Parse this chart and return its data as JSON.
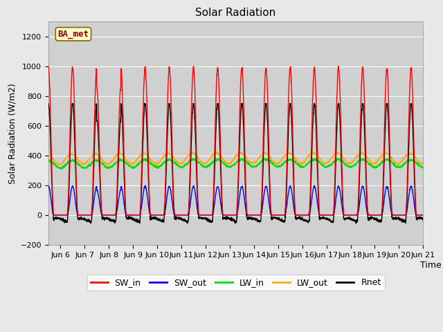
{
  "title": "Solar Radiation",
  "ylabel": "Solar Radiation (W/m2)",
  "xlabel": "Time",
  "ylim": [
    -200,
    1300
  ],
  "yticks": [
    -200,
    0,
    200,
    400,
    600,
    800,
    1000,
    1200
  ],
  "xlim_days": [
    5.5,
    21.0
  ],
  "xtick_positions": [
    6,
    7,
    8,
    9,
    10,
    11,
    12,
    13,
    14,
    15,
    16,
    17,
    18,
    19,
    20,
    21
  ],
  "xtick_labels": [
    "Jun 6",
    "Jun 7",
    "Jun 8",
    "Jun 9",
    "Jun 10",
    "Jun 11",
    "Jun 12",
    "Jun 13",
    "Jun 14",
    "Jun 15",
    "Jun 16",
    "Jun 17",
    "Jun 18",
    "Jun 19",
    "Jun 20",
    "Jun 21"
  ],
  "colors": {
    "SW_in": "#ff0000",
    "SW_out": "#0000ff",
    "LW_in": "#00dd00",
    "LW_out": "#ffaa00",
    "Rnet": "#000000"
  },
  "station_label": "BA_met",
  "background_color": "#e8e8e8",
  "plot_bg_color": "#d0d0d0",
  "title_fontsize": 11,
  "label_fontsize": 9,
  "tick_fontsize": 8,
  "legend_fontsize": 9,
  "num_days": 15,
  "start_day": 5.5,
  "pts_per_day": 144
}
